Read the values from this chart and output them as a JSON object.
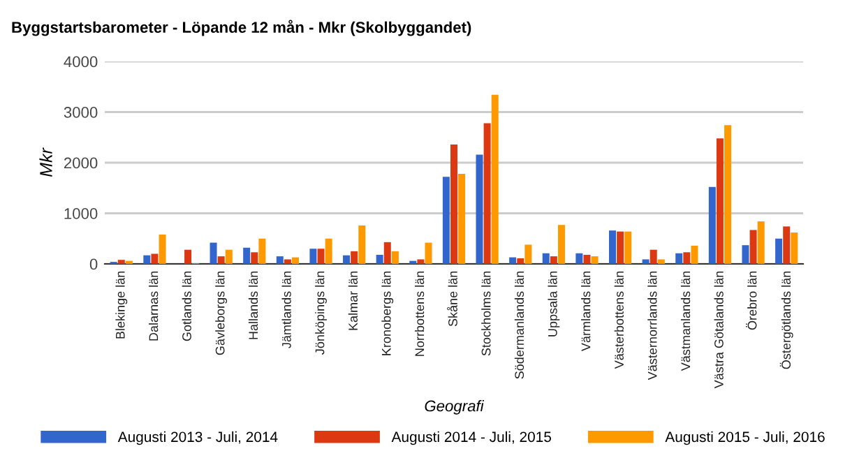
{
  "chart_data": {
    "type": "bar",
    "title": "Byggstartsbarometer - Löpande 12 mån - Mkr (Skolbyggandet)",
    "xlabel": "Geografi",
    "ylabel": "Mkr",
    "categories": [
      "Blekinge län",
      "Dalarnas län",
      "Gotlands län",
      "Gävleborgs län",
      "Hallands län",
      "Jämtlands län",
      "Jönköpings län",
      "Kalmar län",
      "Kronobergs län",
      "Norrbottens län",
      "Skåne län",
      "Stockholms län",
      "Södermanlands län",
      "Uppsala län",
      "Värmlands län",
      "Västerbottens län",
      "Västernorrlands län",
      "Västmanlands län",
      "Västra Götalands län",
      "Örebro län",
      "Östergötlands län"
    ],
    "series": [
      {
        "name": "Augusti 2013 - Juli, 2014",
        "color": "#3366cc",
        "values": [
          40,
          170,
          0,
          420,
          320,
          150,
          300,
          170,
          180,
          60,
          1720,
          2160,
          130,
          210,
          210,
          660,
          90,
          210,
          1520,
          370,
          500
        ]
      },
      {
        "name": "Augusti 2014 - Juli, 2015",
        "color": "#dc3912",
        "values": [
          80,
          200,
          280,
          150,
          230,
          90,
          300,
          250,
          430,
          90,
          2360,
          2780,
          110,
          150,
          180,
          640,
          280,
          230,
          2480,
          670,
          740
        ]
      },
      {
        "name": "Augusti 2015 - Juli, 2016",
        "color": "#ff9900",
        "values": [
          60,
          580,
          10,
          280,
          500,
          130,
          500,
          760,
          250,
          420,
          1780,
          3340,
          380,
          770,
          150,
          640,
          90,
          360,
          2740,
          840,
          620
        ]
      }
    ],
    "ylim": [
      0,
      4000
    ],
    "yticks": [
      0,
      1000,
      2000,
      3000,
      4000
    ],
    "grid": "y",
    "legend": "bottom"
  }
}
